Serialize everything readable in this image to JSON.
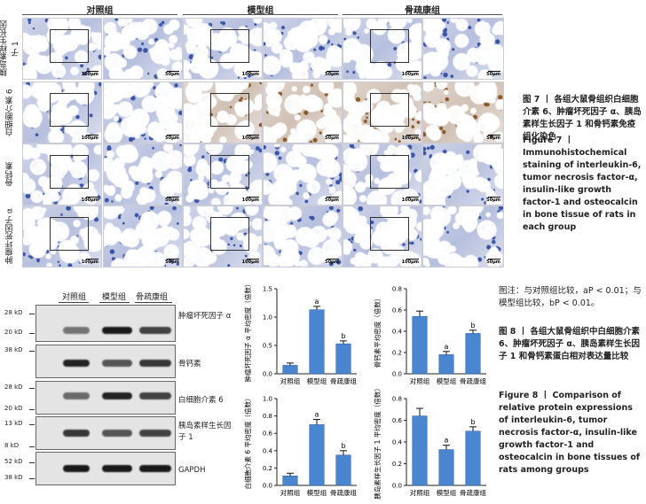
{
  "figure7": {
    "columns": [
      "对照组",
      "模型组",
      "骨疏康组"
    ],
    "rows": [
      "胰岛素样生长因子 1",
      "白细胞介素 6",
      "骨钙素",
      "肿瘤坏死因子 α"
    ],
    "scalebars": [
      "100μm",
      "50μm"
    ],
    "stain_color": "#3a55a8",
    "brown_color": "#8a5a2a",
    "caption_cn": "图 7 丨 各组大鼠骨组织白细胞介素 6、肿瘤坏死因子 α、胰岛素样生长因子 1 和骨钙素免疫组化染色",
    "caption_en": "Figure 7 丨 Immunohistochemical staining of interleukin-6, tumor necrosis factor-α, insulin-like growth factor-1 and osteocalcin in bone tissue of rats in each group"
  },
  "western": {
    "lanes": [
      "对照组",
      "模型组",
      "骨疏康组"
    ],
    "panels": [
      {
        "name": "肿瘤坏死因子 α",
        "markers": [
          "28 kD",
          "20 kD"
        ]
      },
      {
        "name": "骨钙素",
        "markers": [
          "38 kD"
        ]
      },
      {
        "name": "白细胞介素 6",
        "markers": [
          "28 kD",
          "20 kD"
        ]
      },
      {
        "name": "胰岛素样生长因子 1",
        "markers": [
          "13 kD",
          "8 kD"
        ]
      },
      {
        "name": "GAPDH",
        "markers": [
          "52 kD",
          "38 kD"
        ]
      }
    ]
  },
  "chart_data": [
    {
      "type": "bar",
      "categories": [
        "对照组",
        "模型组",
        "骨疏康组"
      ],
      "values": [
        0.15,
        1.13,
        0.53
      ],
      "errors": [
        0.04,
        0.06,
        0.05
      ],
      "sig": [
        "",
        "a",
        "b"
      ],
      "ylabel": "肿瘤坏死因子 α 平均密度（倍数）",
      "ylim": [
        0,
        1.5
      ],
      "ticks": [
        0.0,
        0.5,
        1.0,
        1.5
      ],
      "bar_color": "#4a86d0"
    },
    {
      "type": "bar",
      "categories": [
        "对照组",
        "模型组",
        "骨疏康组"
      ],
      "values": [
        0.54,
        0.18,
        0.38
      ],
      "errors": [
        0.05,
        0.03,
        0.03
      ],
      "sig": [
        "",
        "a",
        "b"
      ],
      "ylabel": "骨钙素平均密度（倍数）",
      "ylim": [
        0,
        0.8
      ],
      "ticks": [
        0.0,
        0.2,
        0.4,
        0.6,
        0.8
      ],
      "bar_color": "#4a86d0"
    },
    {
      "type": "bar",
      "categories": [
        "对照组",
        "模型组",
        "骨疏康组"
      ],
      "values": [
        0.11,
        0.7,
        0.35
      ],
      "errors": [
        0.03,
        0.06,
        0.05
      ],
      "sig": [
        "",
        "a",
        "b"
      ],
      "ylabel": "白细胞介素 6 平均密度（倍数）",
      "ylim": [
        0,
        1.0
      ],
      "ticks": [
        0.0,
        0.2,
        0.4,
        0.6,
        0.8,
        1.0
      ],
      "bar_color": "#4a86d0"
    },
    {
      "type": "bar",
      "categories": [
        "对照组",
        "模型组",
        "骨疏康组"
      ],
      "values": [
        0.64,
        0.33,
        0.5
      ],
      "errors": [
        0.07,
        0.04,
        0.04
      ],
      "sig": [
        "",
        "a",
        "b"
      ],
      "ylabel": "胰岛素样生长因子 1 平均密度（倍数）",
      "ylim": [
        0,
        0.8
      ],
      "ticks": [
        0.0,
        0.2,
        0.4,
        0.6,
        0.8
      ],
      "bar_color": "#4a86d0"
    }
  ],
  "figure8": {
    "note": "图注：与对照组比较，aP < 0.01；与模型组比较，bP < 0.01。",
    "caption_cn": "图 8 丨 各组大鼠骨组织中白细胞介素 6、肿瘤坏死因子 α、胰岛素样生长因子 1 和骨钙素蛋白相对表达量比较",
    "caption_en": "Figure 8 丨 Comparison of relative protein expressions of interleukin-6, tumor necrosis factor-α, insulin-like growth factor-1 and osteocalcin in bone tissues of rats among groups"
  }
}
